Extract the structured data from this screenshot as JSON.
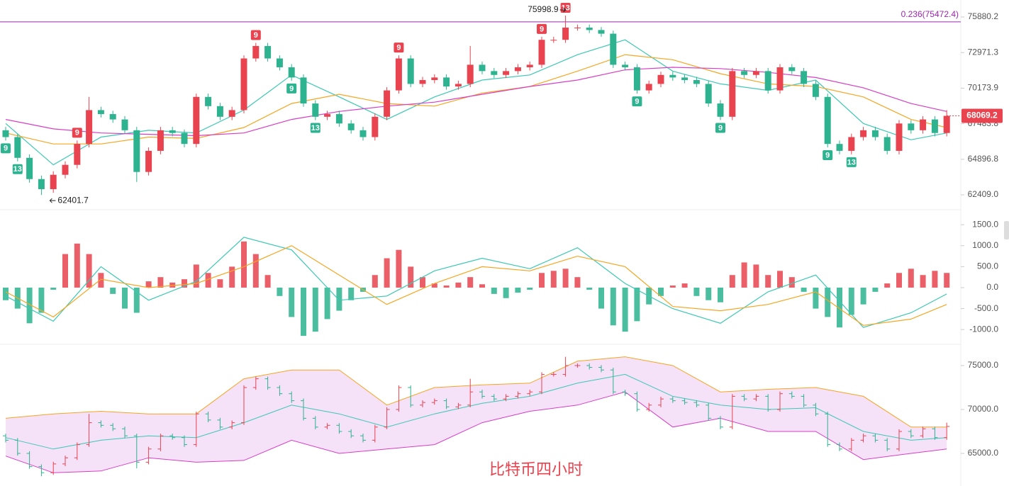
{
  "chart_data": [
    {
      "type": "candlestick",
      "log": true,
      "ylim": [
        61590,
        77310
      ],
      "yticks": [
        75880.2,
        72971.3,
        70173.9,
        67483.8,
        64896.8,
        {
          "value": 62409,
          "label": "62409.0"
        }
      ],
      "up_color": "#e8434f",
      "down_color": "#2db38f",
      "candles": [
        [
          67000,
          67250,
          66250,
          66500
        ],
        [
          66500,
          66750,
          64750,
          65000
        ],
        [
          65000,
          65250,
          63250,
          63500
        ],
        [
          63500,
          63750,
          62401.7,
          62800
        ],
        [
          62800,
          64050,
          62550,
          63800
        ],
        [
          63800,
          64750,
          63550,
          64500
        ],
        [
          64500,
          66250,
          64250,
          66000
        ],
        [
          66000,
          69500,
          65750,
          68500
        ],
        [
          68500,
          68750,
          67950,
          68200
        ],
        [
          68200,
          68450,
          67550,
          67800
        ],
        [
          67800,
          68050,
          66750,
          67000
        ],
        [
          67000,
          67250,
          63300,
          64000
        ],
        [
          64000,
          65750,
          63750,
          65500
        ],
        [
          65500,
          67250,
          65250,
          67000
        ],
        [
          67000,
          67250,
          66550,
          66800
        ],
        [
          66800,
          67050,
          65750,
          66000
        ],
        [
          66000,
          69750,
          65750,
          69500
        ],
        [
          69500,
          69750,
          68550,
          68800
        ],
        [
          68800,
          69050,
          67750,
          68000
        ],
        [
          68000,
          68750,
          67750,
          68500
        ],
        [
          68500,
          72750,
          68250,
          72500
        ],
        [
          72500,
          73750,
          72250,
          73500
        ],
        [
          73500,
          73750,
          72250,
          72500
        ],
        [
          72500,
          72750,
          71550,
          71800
        ],
        [
          71800,
          72050,
          70750,
          71000
        ],
        [
          71000,
          71250,
          68750,
          69000
        ],
        [
          69000,
          69250,
          67750,
          68000
        ],
        [
          68000,
          68450,
          67750,
          68200
        ],
        [
          68200,
          68450,
          67250,
          67500
        ],
        [
          67500,
          67750,
          66750,
          67000
        ],
        [
          67000,
          67250,
          66250,
          66500
        ],
        [
          66500,
          68250,
          66250,
          68000
        ],
        [
          68000,
          70250,
          67750,
          70000
        ],
        [
          70000,
          72750,
          69750,
          72500
        ],
        [
          72500,
          72750,
          70250,
          70500
        ],
        [
          70500,
          71050,
          70250,
          70800
        ],
        [
          70800,
          71250,
          70550,
          71000
        ],
        [
          71000,
          71250,
          70050,
          70300
        ],
        [
          70300,
          70750,
          70050,
          70500
        ],
        [
          70500,
          73500,
          70250,
          72000
        ],
        [
          72000,
          72250,
          71250,
          71500
        ],
        [
          71500,
          71750,
          70950,
          71200
        ],
        [
          71200,
          71750,
          70950,
          71500
        ],
        [
          71500,
          72050,
          71250,
          71800
        ],
        [
          71800,
          72250,
          71550,
          72000
        ],
        [
          72000,
          74250,
          71750,
          74000
        ],
        [
          74000,
          74250,
          73750,
          74000
        ],
        [
          74000,
          75998.9,
          73750,
          75000
        ],
        [
          75000,
          75250,
          74750,
          75000
        ],
        [
          75000,
          75250,
          74550,
          74800
        ],
        [
          74800,
          75050,
          74250,
          74500
        ],
        [
          74500,
          74750,
          71750,
          72000
        ],
        [
          72000,
          72250,
          71550,
          71800
        ],
        [
          71800,
          72050,
          69750,
          70000
        ],
        [
          70000,
          70750,
          69750,
          70500
        ],
        [
          70500,
          71450,
          70250,
          71200
        ],
        [
          71200,
          71450,
          70750,
          71000
        ],
        [
          71000,
          71250,
          70550,
          70800
        ],
        [
          70800,
          71050,
          70250,
          70500
        ],
        [
          70500,
          70750,
          68750,
          69000
        ],
        [
          69000,
          69250,
          67750,
          68000
        ],
        [
          68000,
          71750,
          67750,
          71500
        ],
        [
          71500,
          71750,
          70950,
          71200
        ],
        [
          71200,
          71750,
          70950,
          71500
        ],
        [
          71500,
          71750,
          69750,
          70000
        ],
        [
          70000,
          72050,
          69750,
          71800
        ],
        [
          71800,
          72050,
          71250,
          71500
        ],
        [
          71500,
          71750,
          70250,
          70500
        ],
        [
          70500,
          70750,
          69250,
          69500
        ],
        [
          69500,
          69750,
          65750,
          66000
        ],
        [
          66000,
          66250,
          65250,
          65500
        ],
        [
          65500,
          66750,
          65250,
          66500
        ],
        [
          66500,
          67250,
          66250,
          67000
        ],
        [
          67000,
          67250,
          66250,
          66500
        ],
        [
          66500,
          66750,
          65250,
          65500
        ],
        [
          65500,
          67750,
          65250,
          67500
        ],
        [
          67500,
          67750,
          66750,
          67000
        ],
        [
          67000,
          68050,
          66750,
          67800
        ],
        [
          67800,
          68050,
          66550,
          66800
        ],
        [
          66800,
          68500,
          66550,
          68069.2
        ]
      ],
      "line_x": [
        0,
        4,
        8,
        12,
        16,
        20,
        24,
        28,
        32,
        36,
        40,
        44,
        48,
        52,
        56,
        60,
        64,
        68,
        72,
        76,
        79
      ],
      "series": [
        {
          "color": "#3cc8b4",
          "values": [
            67500,
            64500,
            66500,
            67000,
            66800,
            68500,
            71200,
            69500,
            67800,
            69500,
            70800,
            71200,
            72800,
            74000,
            71500,
            70500,
            70000,
            70800,
            67500,
            66300,
            66800
          ]
        },
        {
          "color": "#f5a623",
          "values": [
            66800,
            66000,
            66000,
            66500,
            66400,
            67200,
            69000,
            69700,
            69000,
            68800,
            69800,
            70300,
            71500,
            72800,
            72400,
            71300,
            70500,
            70300,
            69500,
            67800,
            67200
          ]
        },
        {
          "color": "#d63fc6",
          "values": [
            67800,
            67100,
            66800,
            66700,
            66600,
            66800,
            67800,
            68400,
            68800,
            69100,
            69700,
            70300,
            70800,
            71600,
            71800,
            71700,
            71400,
            71000,
            70200,
            69000,
            68400
          ]
        }
      ],
      "td_marks": [
        {
          "i": 6,
          "count": 9,
          "side": "above"
        },
        {
          "i": 21,
          "count": 9,
          "side": "above"
        },
        {
          "i": 33,
          "count": 9,
          "side": "above"
        },
        {
          "i": 45,
          "count": 9,
          "side": "above"
        },
        {
          "i": 47,
          "count": 13,
          "side": "above"
        },
        {
          "i": 0,
          "count": 9,
          "side": "below"
        },
        {
          "i": 1,
          "count": 13,
          "side": "below"
        },
        {
          "i": 24,
          "count": 9,
          "side": "below"
        },
        {
          "i": 26,
          "count": 13,
          "side": "below"
        },
        {
          "i": 53,
          "count": 9,
          "side": "below"
        },
        {
          "i": 60,
          "count": 9,
          "side": "below"
        },
        {
          "i": 69,
          "count": 9,
          "side": "below"
        },
        {
          "i": 71,
          "count": 13,
          "side": "below"
        }
      ],
      "fib_level": {
        "label": "0.236(75472.4)",
        "value": 75472.4,
        "color": "#9c27b0"
      },
      "high_mark": 47,
      "low_mark": 3,
      "last_color": "#e8434f"
    },
    {
      "type": "macd",
      "ylim": [
        -1250,
        1790
      ],
      "yticks": [
        {
          "value": 1500,
          "label": "1500.0"
        },
        {
          "value": 1000,
          "label": "1000.0"
        },
        {
          "value": 500,
          "label": "500.0"
        },
        {
          "value": 0,
          "label": "0.0"
        },
        {
          "value": -500,
          "label": "-500.0"
        },
        {
          "value": -1000,
          "label": "-1000.0"
        }
      ],
      "up_color": "#e8434f",
      "down_color": "#2db38f",
      "histogram": [
        -300,
        -500,
        -850,
        -600,
        -50,
        800,
        1050,
        800,
        350,
        -150,
        -500,
        -600,
        150,
        250,
        120,
        200,
        550,
        350,
        200,
        500,
        1100,
        800,
        300,
        -200,
        -700,
        -1150,
        -1050,
        -750,
        -550,
        -300,
        -100,
        300,
        700,
        900,
        500,
        250,
        100,
        50,
        120,
        250,
        80,
        -150,
        -250,
        -120,
        -50,
        350,
        400,
        450,
        250,
        -50,
        -500,
        -900,
        -1050,
        -800,
        -400,
        -200,
        50,
        100,
        -200,
        -300,
        -350,
        300,
        600,
        550,
        300,
        400,
        250,
        -100,
        -500,
        -700,
        -950,
        -650,
        -400,
        -100,
        100,
        350,
        450,
        300,
        400,
        350
      ],
      "line_x": [
        0,
        4,
        8,
        12,
        16,
        20,
        24,
        28,
        32,
        36,
        40,
        44,
        48,
        52,
        56,
        60,
        64,
        68,
        72,
        76,
        79
      ],
      "series": [
        {
          "color": "#3cc8b4",
          "values": [
            -200,
            -800,
            500,
            -300,
            150,
            1200,
            900,
            -300,
            -200,
            400,
            700,
            450,
            950,
            100,
            -500,
            -850,
            -100,
            300,
            -950,
            -600,
            -150
          ]
        },
        {
          "color": "#f5a623",
          "values": [
            -100,
            -700,
            200,
            0,
            100,
            500,
            1000,
            300,
            -400,
            100,
            500,
            400,
            750,
            500,
            -450,
            -550,
            -400,
            -100,
            -900,
            -750,
            -400
          ]
        }
      ]
    },
    {
      "type": "bollinger",
      "ylim": [
        61530,
        77100
      ],
      "yticks": [
        {
          "value": 75000,
          "label": "75000.0"
        },
        {
          "value": 70000,
          "label": "70000.0"
        },
        {
          "value": 65000,
          "label": "65000.0"
        }
      ],
      "fill": "#f5e1f8",
      "line_x": [
        0,
        4,
        8,
        12,
        16,
        20,
        24,
        28,
        32,
        36,
        40,
        44,
        48,
        52,
        56,
        60,
        64,
        68,
        72,
        76,
        79
      ],
      "series": [
        {
          "color": "#f5a623",
          "values": [
            69000,
            69500,
            69800,
            69500,
            69500,
            73500,
            74500,
            74500,
            70500,
            72500,
            72800,
            73000,
            75500,
            76000,
            75000,
            72000,
            72300,
            72500,
            71500,
            68000,
            68000
          ]
        },
        {
          "color": "#3cc8b4",
          "values": [
            66800,
            65500,
            66500,
            67000,
            66800,
            68500,
            70500,
            69500,
            68000,
            69500,
            70700,
            71500,
            73000,
            74000,
            71500,
            70500,
            70000,
            70200,
            67500,
            66500,
            66800
          ]
        },
        {
          "color": "#d63fc6",
          "values": [
            64700,
            62800,
            63000,
            64500,
            64000,
            64200,
            66500,
            65000,
            65500,
            66000,
            68500,
            69800,
            70500,
            72000,
            68000,
            69000,
            67500,
            67500,
            64300,
            65000,
            65500
          ]
        }
      ],
      "caption": "比特币四小时",
      "caption_color": "#e8434f"
    }
  ]
}
